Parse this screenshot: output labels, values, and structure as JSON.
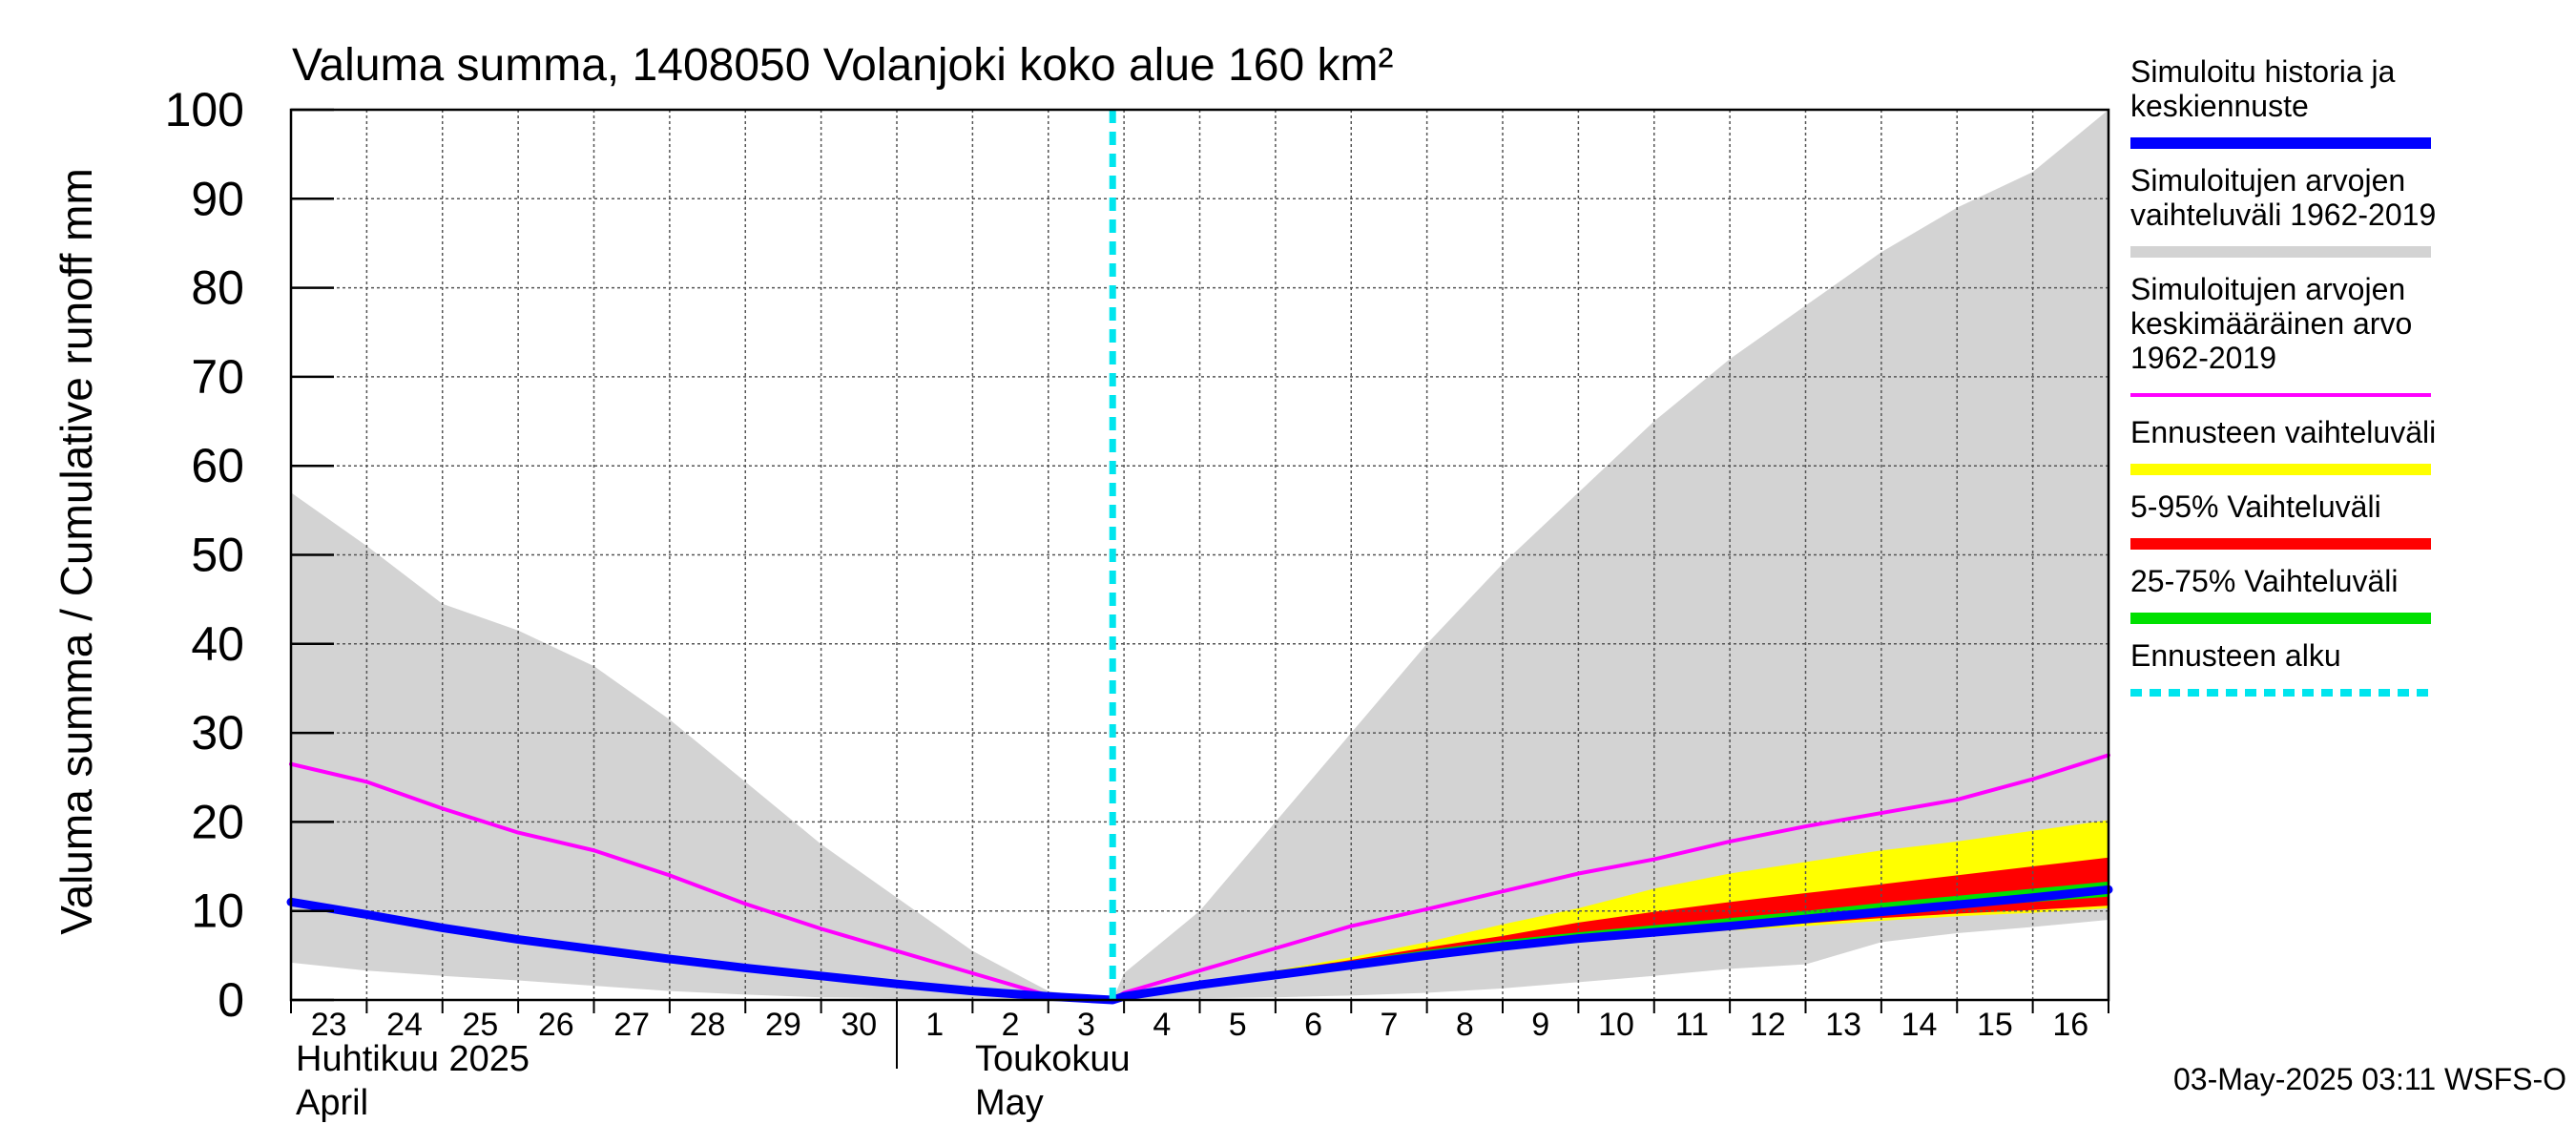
{
  "chart_data": {
    "type": "area",
    "title": "Valuma summa, 1408050 Volanjoki koko alue 160 km²",
    "ylabel": "Valuma summa / Cumulative runoff    mm",
    "ylim": [
      0,
      100
    ],
    "yticks": [
      0,
      10,
      20,
      30,
      40,
      50,
      60,
      70,
      80,
      90,
      100
    ],
    "x_day_labels": [
      "23",
      "24",
      "25",
      "26",
      "27",
      "28",
      "29",
      "30",
      "1",
      "2",
      "3",
      "4",
      "5",
      "6",
      "7",
      "8",
      "9",
      "10",
      "11",
      "12",
      "13",
      "14",
      "15",
      "16"
    ],
    "month_labels": [
      {
        "fi": "Huhtikuu  2025",
        "en": "April"
      },
      {
        "fi": "Toukokuu",
        "en": "May"
      }
    ],
    "forecast_start_day": 10.85,
    "series": [
      {
        "name": "Simuloitujen arvojen vaihteluväli 1962-2019",
        "kind": "band",
        "color": "#d3d3d3",
        "x": [
          0,
          1,
          2,
          3,
          4,
          5,
          6,
          7,
          8,
          9,
          10,
          10.85,
          11,
          12,
          13,
          14,
          15,
          16,
          17,
          18,
          19,
          20,
          21,
          22,
          23,
          24
        ],
        "upper": [
          57,
          51,
          44.5,
          41.5,
          37.5,
          31.5,
          24.5,
          17.5,
          11.5,
          5.5,
          1,
          0,
          3,
          10,
          20,
          30,
          40,
          49,
          57,
          65,
          72,
          78,
          84,
          89,
          93,
          100
        ],
        "lower": [
          4.2,
          3.3,
          2.7,
          2.2,
          1.6,
          1,
          0.6,
          0.3,
          0.2,
          0.1,
          0,
          0,
          0.1,
          0.2,
          0.3,
          0.5,
          0.8,
          1.3,
          2,
          2.7,
          3.5,
          4,
          6.5,
          7.5,
          8.2,
          9
        ]
      },
      {
        "name": "Ennusteen vaihteluväli",
        "kind": "band",
        "color": "#ffff00",
        "x": [
          10.85,
          12,
          13,
          14,
          15,
          16,
          17,
          18,
          19,
          20,
          21,
          22,
          23,
          24
        ],
        "upper": [
          0,
          2,
          3.3,
          4.8,
          6.5,
          8.5,
          10.3,
          12.5,
          14.2,
          15.5,
          16.8,
          17.8,
          19,
          20.2
        ],
        "lower": [
          0,
          2,
          3.1,
          4.2,
          5.2,
          6,
          6.6,
          7.2,
          7.8,
          8.3,
          8.9,
          9.4,
          9.8,
          10.3
        ]
      },
      {
        "name": "5-95% Vaihteluväli",
        "kind": "band",
        "color": "#ff0000",
        "x": [
          10.85,
          12,
          13,
          14,
          15,
          16,
          17,
          18,
          19,
          20,
          21,
          22,
          23,
          24
        ],
        "upper": [
          0,
          2,
          3.2,
          4.5,
          5.9,
          7.2,
          8.7,
          9.9,
          11,
          12,
          13,
          14,
          15,
          16
        ],
        "lower": [
          0,
          2,
          3.1,
          4.3,
          5.3,
          6.1,
          6.8,
          7.4,
          8,
          8.6,
          9.2,
          9.7,
          10.1,
          10.6
        ]
      },
      {
        "name": "25-75% Vaihteluväli",
        "kind": "band",
        "color": "#00e000",
        "x": [
          10.85,
          12,
          13,
          14,
          15,
          16,
          17,
          18,
          19,
          20,
          21,
          22,
          23,
          24
        ],
        "upper": [
          0,
          2,
          3.2,
          4.4,
          5.6,
          6.7,
          7.6,
          8.4,
          9.2,
          10,
          10.9,
          11.7,
          12.5,
          13.3
        ],
        "lower": [
          0,
          2,
          3.1,
          4.3,
          5.4,
          6.3,
          7.1,
          7.7,
          8.4,
          9,
          9.7,
          10.4,
          11,
          11.6
        ]
      },
      {
        "name": "Simuloitujen arvojen keskimääräinen arvo 1962-2019",
        "kind": "line",
        "color": "#ff00ff",
        "width": 4,
        "x": [
          0,
          1,
          2,
          3,
          4,
          5,
          6,
          7,
          8,
          9,
          10,
          10.85,
          11,
          12,
          13,
          14,
          15,
          16,
          17,
          18,
          19,
          20,
          21,
          22,
          23,
          24
        ],
        "values": [
          26.5,
          24.5,
          21.5,
          18.8,
          16.8,
          14,
          10.8,
          8,
          5.5,
          3,
          0.5,
          0,
          0.8,
          3.3,
          5.8,
          8.3,
          10.2,
          12.2,
          14.2,
          15.8,
          17.8,
          19.5,
          21,
          22.5,
          24.8,
          27.5
        ]
      },
      {
        "name": "Simuloitu historia ja keskiennuste",
        "kind": "line",
        "color": "#0000ff",
        "width": 9,
        "x": [
          0,
          1,
          2,
          3,
          4,
          5,
          6,
          7,
          8,
          9,
          10,
          10.85,
          11,
          12,
          13,
          14,
          15,
          16,
          17,
          18,
          19,
          20,
          21,
          22,
          23,
          24
        ],
        "values": [
          11,
          9.6,
          8.1,
          6.8,
          5.7,
          4.6,
          3.6,
          2.7,
          1.8,
          1,
          0.4,
          0,
          0.4,
          1.7,
          2.8,
          3.9,
          5,
          6,
          6.9,
          7.6,
          8.3,
          9.1,
          9.9,
          10.7,
          11.5,
          12.4
        ]
      }
    ],
    "legend": [
      {
        "text": "Simuloitu historia ja keskiennuste",
        "lines": [
          "Simuloitu historia ja",
          "keskiennuste"
        ],
        "color": "#0000ff",
        "style": "solid"
      },
      {
        "text": "Simuloitujen arvojen vaihteluväli 1962-2019",
        "lines": [
          "Simuloitujen arvojen",
          "vaihteluväli 1962-2019"
        ],
        "color": "#d3d3d3",
        "style": "solid"
      },
      {
        "text": "Simuloitujen arvojen keskimääräinen arvo 1962-2019",
        "lines": [
          "Simuloitujen arvojen",
          "keskimääräinen arvo",
          "   1962-2019"
        ],
        "color": "#ff00ff",
        "style": "thin"
      },
      {
        "text": "Ennusteen vaihteluväli",
        "lines": [
          "Ennusteen vaihteluväli"
        ],
        "color": "#ffff00",
        "style": "solid"
      },
      {
        "text": "5-95% Vaihteluväli",
        "lines": [
          "5-95% Vaihteluväli"
        ],
        "color": "#ff0000",
        "style": "solid"
      },
      {
        "text": "25-75% Vaihteluväli",
        "lines": [
          "25-75% Vaihteluväli"
        ],
        "color": "#00e000",
        "style": "solid"
      },
      {
        "text": "Ennusteen alku",
        "lines": [
          "Ennusteen alku"
        ],
        "color": "#00e5ee",
        "style": "dashed"
      }
    ],
    "footer": "03-May-2025 03:11 WSFS-O"
  }
}
